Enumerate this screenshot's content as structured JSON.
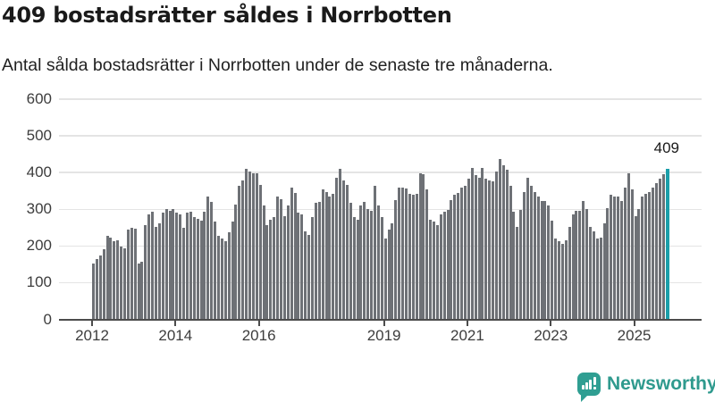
{
  "header": {
    "title": "409 bostadsrätter såldes i Norrbotten",
    "subtitle": "Antal sålda bostadsrätter i Norrbotten under de senaste tre månaderna."
  },
  "annotation": {
    "label": "409"
  },
  "footer": {
    "brand": "Newsworthy"
  },
  "colors": {
    "bar": "#6e7176",
    "highlight": "#1b9faa",
    "axis": "#4c4c4c",
    "grid": "#e4e4e4",
    "text": "#1a1a1a",
    "tick_text": "#3d3d3d",
    "logo": "#2f9e92"
  },
  "chart_data": {
    "type": "bar",
    "title": "409 bostadsrätter såldes i Norrbotten",
    "subtitle": "Antal sålda bostadsrätter i Norrbotten under de senaste tre månaderna.",
    "x_start": "2012-01",
    "x_end": "2025-10",
    "x_unit": "month",
    "ylim": [
      0,
      600
    ],
    "y_ticks": [
      0,
      100,
      200,
      300,
      400,
      500,
      600
    ],
    "x_tick_years": [
      2012,
      2014,
      2016,
      2019,
      2021,
      2023,
      2025
    ],
    "x_tick_labels": [
      "2012",
      "2014",
      "2016",
      "2019",
      "2021",
      "2023",
      "2025"
    ],
    "grid": "horizontal",
    "legend": "none",
    "bar_color": "#6e7176",
    "highlight": {
      "index": 165,
      "value": 409,
      "label": "409",
      "color": "#1b9faa"
    },
    "values": [
      150,
      162,
      173,
      190,
      227,
      220,
      211,
      215,
      196,
      193,
      243,
      248,
      245,
      150,
      155,
      255,
      284,
      292,
      251,
      260,
      290,
      300,
      295,
      300,
      290,
      285,
      247,
      288,
      292,
      276,
      272,
      268,
      292,
      334,
      318,
      264,
      227,
      219,
      212,
      235,
      266,
      310,
      361,
      377,
      407,
      401,
      397,
      396,
      365,
      308,
      255,
      269,
      276,
      332,
      326,
      280,
      308,
      357,
      342,
      288,
      284,
      239,
      229,
      276,
      315,
      318,
      353,
      345,
      333,
      341,
      385,
      407,
      377,
      365,
      315,
      276,
      269,
      308,
      318,
      298,
      294,
      361,
      308,
      276,
      219,
      242,
      260,
      324,
      357,
      358,
      355,
      341,
      337,
      341,
      397,
      393,
      353,
      269,
      266,
      255,
      284,
      292,
      296,
      324,
      337,
      342,
      357,
      361,
      381,
      410,
      391,
      385,
      410,
      381,
      377,
      373,
      401,
      434,
      418,
      406,
      361,
      292,
      251,
      296,
      345,
      385,
      361,
      345,
      333,
      320,
      320,
      308,
      268,
      219,
      211,
      203,
      215,
      251,
      284,
      295,
      295,
      320,
      300,
      251,
      239,
      219,
      221,
      260,
      302,
      337,
      333,
      334,
      320,
      357,
      397,
      353,
      280,
      300,
      333,
      341,
      345,
      357,
      369,
      381,
      393,
      409
    ]
  }
}
